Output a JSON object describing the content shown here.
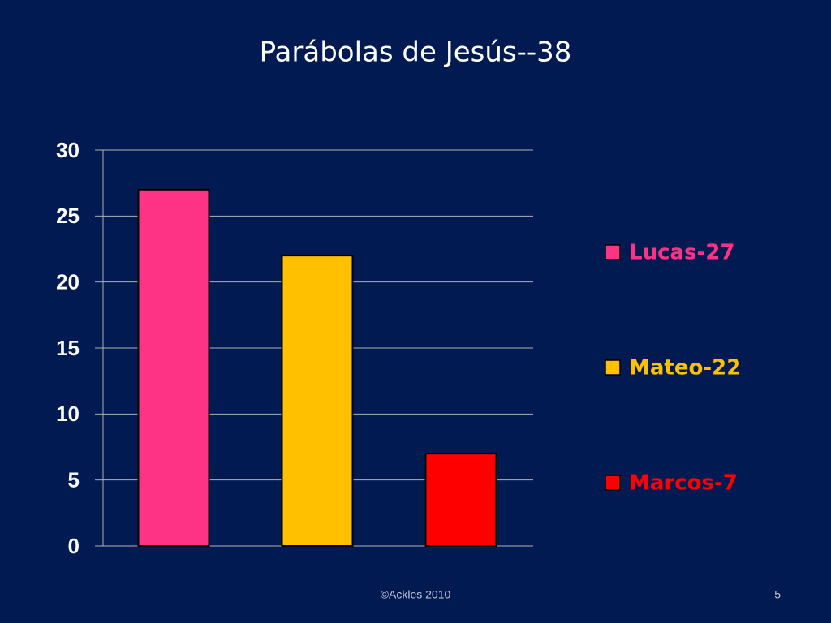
{
  "chart_data": {
    "type": "bar",
    "title": "Parábolas de Jesús--38",
    "categories": [
      null
    ],
    "series": [
      {
        "name": "Lucas-27",
        "color": "#ff3385",
        "values": [
          27
        ]
      },
      {
        "name": "Mateo-22",
        "color": "#ffc000",
        "values": [
          22
        ]
      },
      {
        "name": "Marcos-7",
        "color": "#ff0000",
        "values": [
          7
        ]
      }
    ],
    "ylim": [
      0,
      30
    ],
    "yticks": [
      0,
      5,
      10,
      15,
      20,
      25,
      30
    ],
    "grid": true,
    "legend": "right"
  },
  "footer": "©Ackles 2010",
  "page_number": "5"
}
